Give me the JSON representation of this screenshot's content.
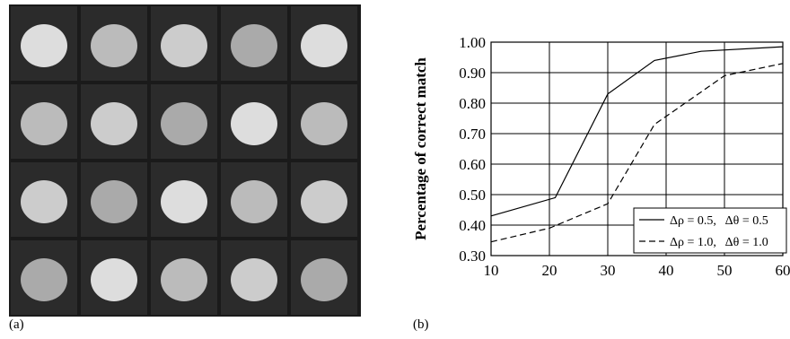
{
  "panel_labels": [
    "(a)",
    "(b)"
  ],
  "chart_data": {
    "type": "line",
    "y_label": "Percentage of correct match",
    "xlim": [
      10,
      60
    ],
    "xticks": [
      10,
      20,
      30,
      40,
      50,
      60
    ],
    "ylim": [
      0.3,
      1.0
    ],
    "yticks": [
      {
        "value": 0.3,
        "label": "0.30"
      },
      {
        "value": 0.4,
        "label": "0.40"
      },
      {
        "value": 0.5,
        "label": "0.50"
      },
      {
        "value": 0.6,
        "label": "0.60"
      },
      {
        "value": 0.7,
        "label": "0.70"
      },
      {
        "value": 0.8,
        "label": "0.80"
      },
      {
        "value": 0.9,
        "label": "0.90"
      },
      {
        "value": 1.0,
        "label": "1.00"
      }
    ],
    "grid": true,
    "legend": "lower right",
    "series": [
      {
        "name": "Δρ = 0.5,   Δθ = 0.5",
        "color": "#000000",
        "dash": "solid",
        "x": [
          10,
          21,
          30,
          38,
          46,
          60
        ],
        "values": [
          0.43,
          0.49,
          0.83,
          0.94,
          0.97,
          0.985
        ]
      },
      {
        "name": "Δρ = 1.0,   Δθ = 1.0",
        "color": "#000000",
        "dash": "dashed",
        "x": [
          10,
          20,
          30,
          38,
          50,
          60
        ],
        "values": [
          0.345,
          0.39,
          0.47,
          0.73,
          0.89,
          0.93
        ]
      }
    ]
  }
}
